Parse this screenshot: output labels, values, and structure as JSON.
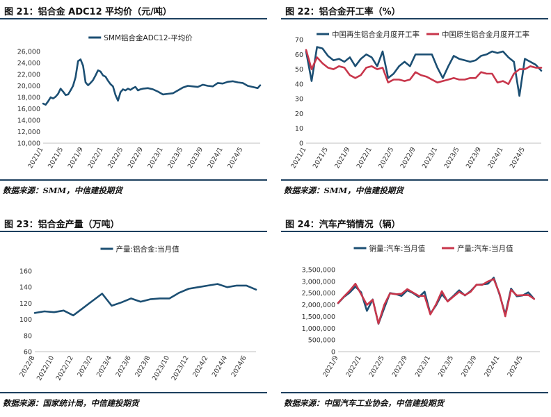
{
  "panels": [
    {
      "title": "图 21：铝合金 ADC12 平均价（元/吨）",
      "source": "数据来源：SMM，中信建投期货"
    },
    {
      "title": "图 22：铝合金开工率（%）",
      "source": "数据来源：SMM，中信建投期货"
    },
    {
      "title": "图 23：铝合金产量（万吨）",
      "source": "数据来源：国家统计局，中信建投期货"
    },
    {
      "title": "图 24：汽车产销情况（辆）",
      "source": "数据来源：中国汽车工业协会，中信建投期货"
    }
  ],
  "colors": {
    "navy": "#1c4f73",
    "red": "#c8364b",
    "rule": "#1c3f5e"
  },
  "chart_data": [
    {
      "type": "line",
      "title": "",
      "ylim": [
        10000,
        26000
      ],
      "yticks": [
        "10,000",
        "12,000",
        "14,000",
        "16,000",
        "18,000",
        "20,000",
        "22,000",
        "24,000",
        "26,000"
      ],
      "ytick_values": [
        10000,
        12000,
        14000,
        16000,
        18000,
        20000,
        22000,
        24000,
        26000
      ],
      "xticks": [
        "2021/1",
        "2021/5",
        "2021/9",
        "2022/1",
        "2022/5",
        "2022/9",
        "2023/1",
        "2023/5",
        "2023/9",
        "2024/1",
        "2024/5"
      ],
      "xtick_months": [
        0,
        4,
        8,
        12,
        16,
        20,
        24,
        28,
        32,
        36,
        40
      ],
      "xlim_months": [
        0,
        43.5
      ],
      "legend_position": "top-center",
      "series": [
        {
          "name": "SMM铝合金ADC12-平均价",
          "color": "#1c4f73",
          "x_months": [
            0,
            0.5,
            1,
            1.5,
            2,
            2.5,
            3,
            3.5,
            4,
            4.5,
            5,
            5.5,
            6,
            6.5,
            7,
            7.5,
            8,
            8.5,
            9,
            9.5,
            10,
            10.5,
            11,
            11.5,
            12,
            12.5,
            13,
            13.5,
            14,
            14.5,
            15,
            15.5,
            16,
            16.5,
            17,
            17.5,
            18,
            18.5,
            19,
            19.5,
            20,
            21,
            22,
            23,
            24,
            25,
            26,
            27,
            28,
            29,
            30,
            31,
            32,
            33,
            34,
            35,
            36,
            37,
            38,
            39,
            40,
            41,
            42,
            43,
            43.5
          ],
          "values": [
            16900,
            16700,
            17300,
            18000,
            17800,
            18100,
            18600,
            19500,
            19000,
            18400,
            18500,
            19200,
            20000,
            21500,
            24300,
            24600,
            23500,
            20600,
            20100,
            20500,
            21000,
            21800,
            22700,
            22500,
            21800,
            21600,
            20900,
            20300,
            19900,
            18400,
            17400,
            18900,
            19400,
            19200,
            19500,
            19300,
            19600,
            19800,
            19200,
            19400,
            19500,
            19600,
            19400,
            19000,
            18500,
            18600,
            18700,
            19200,
            19700,
            20000,
            19900,
            19800,
            20200,
            20000,
            19900,
            20500,
            20400,
            20700,
            20800,
            20600,
            20500,
            20000,
            19800,
            19600,
            20100
          ]
        }
      ]
    },
    {
      "type": "line",
      "title": "",
      "ylim": [
        0,
        70
      ],
      "yticks": [
        "0",
        "10",
        "20",
        "30",
        "40",
        "50",
        "60",
        "70"
      ],
      "ytick_values": [
        0,
        10,
        20,
        30,
        40,
        50,
        60,
        70
      ],
      "xticks": [
        "2021/1",
        "2021/5",
        "2021/9",
        "2022/1",
        "2022/5",
        "2022/9",
        "2023/1",
        "2023/5",
        "2023/9",
        "2024/1",
        "2024/5"
      ],
      "xtick_months": [
        0,
        4,
        8,
        12,
        16,
        20,
        24,
        28,
        32,
        36,
        40
      ],
      "xlim_months": [
        0,
        43
      ],
      "legend_position": "top-center",
      "series": [
        {
          "name": "中国再生铝合金月度开工率",
          "color": "#1c4f73",
          "x_months": [
            0,
            1,
            2,
            3,
            4,
            5,
            6,
            7,
            8,
            9,
            10,
            11,
            12,
            13,
            14,
            15,
            16,
            17,
            18,
            19,
            20,
            21,
            22,
            23,
            24,
            25,
            26,
            27,
            28,
            29,
            30,
            31,
            32,
            33,
            34,
            35,
            36,
            37,
            38,
            39,
            40,
            41,
            42,
            43
          ],
          "values": [
            62,
            42,
            65,
            64,
            59,
            56,
            57,
            55,
            58,
            52,
            57,
            60,
            58,
            52,
            62,
            44,
            47,
            52,
            55,
            52,
            60,
            60,
            60,
            60,
            51,
            44,
            52,
            59,
            57,
            56,
            55,
            56,
            59,
            60,
            62,
            61,
            62,
            58,
            55,
            32,
            57,
            55,
            53,
            49
          ]
        },
        {
          "name": "中国原生铝合金月度开工率",
          "color": "#c8364b",
          "x_months": [
            0,
            1,
            2,
            3,
            4,
            5,
            6,
            7,
            8,
            9,
            10,
            11,
            12,
            13,
            14,
            15,
            16,
            17,
            18,
            19,
            20,
            21,
            22,
            23,
            24,
            25,
            26,
            27,
            28,
            29,
            30,
            31,
            32,
            33,
            34,
            35,
            36,
            37,
            38,
            39,
            40,
            41,
            42,
            43
          ],
          "values": [
            63,
            50,
            58,
            54,
            51,
            50,
            52,
            51,
            46,
            44,
            46,
            51,
            52,
            50,
            51,
            41,
            43,
            43,
            42,
            43,
            48,
            46,
            45,
            43,
            41,
            42,
            43,
            44,
            43,
            43,
            44,
            44,
            48,
            47,
            47,
            41,
            42,
            40,
            47,
            50,
            50,
            52,
            51,
            51
          ]
        }
      ]
    },
    {
      "type": "line",
      "title": "",
      "ylim": [
        60,
        160
      ],
      "yticks": [
        "60",
        "80",
        "100",
        "120",
        "140",
        "160"
      ],
      "ytick_values": [
        60,
        80,
        100,
        120,
        140,
        160
      ],
      "xticks": [
        "2022/8",
        "2022/10",
        "2022/12",
        "2023/2",
        "2023/4",
        "2023/6",
        "2023/8",
        "2023/10",
        "2023/12",
        "2024/2",
        "2024/4",
        "2024/6"
      ],
      "xtick_months": [
        0,
        2,
        4,
        6,
        8,
        10,
        12,
        14,
        16,
        18,
        20,
        22
      ],
      "xlim_months": [
        0,
        23
      ],
      "legend_position": "top-center",
      "series": [
        {
          "name": "产量:铝合金:当月值",
          "color": "#1c4f73",
          "x_months": [
            0,
            1,
            2,
            3,
            4,
            5,
            6,
            7,
            8,
            9,
            10,
            11,
            12,
            13,
            14,
            15,
            16,
            17,
            18,
            19,
            20,
            21,
            22,
            23
          ],
          "values": [
            108,
            110,
            109,
            111,
            105,
            114,
            123,
            132,
            117,
            121,
            126,
            122,
            125,
            126,
            126,
            133,
            138,
            140,
            142,
            144,
            140,
            142,
            142,
            137
          ]
        }
      ]
    },
    {
      "type": "line",
      "title": "",
      "ylim": [
        0,
        3500000
      ],
      "yticks": [
        "0",
        "500,000",
        "1,000,000",
        "1,500,000",
        "2,000,000",
        "2,500,000",
        "3,000,000",
        "3,500,000"
      ],
      "ytick_values": [
        0,
        500000,
        1000000,
        1500000,
        2000000,
        2500000,
        3000000,
        3500000
      ],
      "xticks": [
        "2021/9",
        "2022/1",
        "2022/5",
        "2022/9",
        "2023/1",
        "2023/5",
        "2023/9",
        "2024/1",
        "2024/5"
      ],
      "xtick_months": [
        0,
        4,
        8,
        12,
        16,
        20,
        24,
        28,
        32
      ],
      "xlim_months": [
        0,
        35
      ],
      "legend_position": "top-center",
      "series": [
        {
          "name": "销量:汽车:当月值",
          "color": "#1c4f73",
          "x_months": [
            0,
            1,
            2,
            3,
            4,
            5,
            6,
            7,
            8,
            9,
            10,
            11,
            12,
            13,
            14,
            15,
            16,
            17,
            18,
            19,
            20,
            21,
            22,
            23,
            24,
            25,
            26,
            27,
            28,
            29,
            30,
            31,
            32,
            33,
            34
          ],
          "values": [
            2070000,
            2330000,
            2520000,
            2780000,
            2530000,
            1740000,
            2230000,
            1190000,
            1860000,
            2500000,
            2460000,
            2380000,
            2620000,
            2500000,
            2330000,
            2560000,
            1620000,
            1980000,
            2450000,
            2160000,
            2380000,
            2620000,
            2400000,
            2590000,
            2850000,
            2870000,
            2900000,
            3160000,
            2440000,
            1590000,
            2690000,
            2360000,
            2400000,
            2530000,
            2250000
          ]
        },
        {
          "name": "产量:汽车:当月值",
          "color": "#c8364b",
          "x_months": [
            0,
            1,
            2,
            3,
            4,
            5,
            6,
            7,
            8,
            9,
            10,
            11,
            12,
            13,
            14,
            15,
            16,
            17,
            18,
            19,
            20,
            21,
            22,
            23,
            24,
            25,
            26,
            27,
            28,
            29,
            30,
            31,
            32,
            33,
            34
          ],
          "values": [
            2080000,
            2350000,
            2600000,
            2900000,
            2450000,
            2000000,
            2220000,
            1200000,
            2000000,
            2490000,
            2450000,
            2470000,
            2670000,
            2520000,
            2380000,
            2380000,
            1590000,
            2030000,
            2580000,
            2140000,
            2350000,
            2550000,
            2410000,
            2560000,
            2860000,
            2850000,
            3000000,
            3100000,
            2480000,
            1510000,
            2640000,
            2400000,
            2410000,
            2420000,
            2250000
          ]
        }
      ]
    }
  ]
}
